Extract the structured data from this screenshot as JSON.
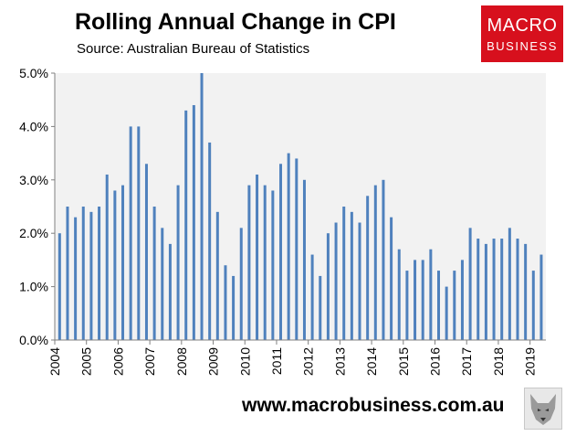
{
  "header": {
    "title": "Rolling Annual Change in CPI",
    "subtitle": "Source: Australian Bureau of Statistics"
  },
  "logo": {
    "line1": "MACRO",
    "line2": "BUSINESS"
  },
  "footer": {
    "url": "www.macrobusiness.com.au"
  },
  "colors": {
    "bar": "#4f81bd",
    "plot_background": "#f2f2f2",
    "logo": "#d7101d"
  },
  "chart_data": {
    "type": "bar",
    "title": "Rolling Annual Change in CPI",
    "subtitle": "Source: Australian Bureau of Statistics",
    "xlabel": "",
    "ylabel": "",
    "ylim": [
      0,
      5.0
    ],
    "yticks": [
      "0.0%",
      "1.0%",
      "2.0%",
      "3.0%",
      "4.0%",
      "5.0%"
    ],
    "xticks": [
      "2004",
      "2005",
      "2006",
      "2007",
      "2008",
      "2009",
      "2010",
      "2011",
      "2012",
      "2013",
      "2014",
      "2015",
      "2016",
      "2017",
      "2018",
      "2019"
    ],
    "grid": false,
    "legend": "none",
    "categories": [
      "2004 Q1",
      "2004 Q2",
      "2004 Q3",
      "2004 Q4",
      "2005 Q1",
      "2005 Q2",
      "2005 Q3",
      "2005 Q4",
      "2006 Q1",
      "2006 Q2",
      "2006 Q3",
      "2006 Q4",
      "2007 Q1",
      "2007 Q2",
      "2007 Q3",
      "2007 Q4",
      "2008 Q1",
      "2008 Q2",
      "2008 Q3",
      "2008 Q4",
      "2009 Q1",
      "2009 Q2",
      "2009 Q3",
      "2009 Q4",
      "2010 Q1",
      "2010 Q2",
      "2010 Q3",
      "2010 Q4",
      "2011 Q1",
      "2011 Q2",
      "2011 Q3",
      "2011 Q4",
      "2012 Q1",
      "2012 Q2",
      "2012 Q3",
      "2012 Q4",
      "2013 Q1",
      "2013 Q2",
      "2013 Q3",
      "2013 Q4",
      "2014 Q1",
      "2014 Q2",
      "2014 Q3",
      "2014 Q4",
      "2015 Q1",
      "2015 Q2",
      "2015 Q3",
      "2015 Q4",
      "2016 Q1",
      "2016 Q2",
      "2016 Q3",
      "2016 Q4",
      "2017 Q1",
      "2017 Q2",
      "2017 Q3",
      "2017 Q4",
      "2018 Q1",
      "2018 Q2",
      "2018 Q3",
      "2018 Q4",
      "2019 Q1",
      "2019 Q2"
    ],
    "values": [
      2.0,
      2.5,
      2.3,
      2.5,
      2.4,
      2.5,
      3.1,
      2.8,
      2.9,
      4.0,
      4.0,
      3.3,
      2.5,
      2.1,
      1.8,
      2.9,
      4.3,
      4.4,
      5.0,
      3.7,
      2.4,
      1.4,
      1.2,
      2.1,
      2.9,
      3.1,
      2.9,
      2.8,
      3.3,
      3.5,
      3.4,
      3.0,
      1.6,
      1.2,
      2.0,
      2.2,
      2.5,
      2.4,
      2.2,
      2.7,
      2.9,
      3.0,
      2.3,
      1.7,
      1.3,
      1.5,
      1.5,
      1.7,
      1.3,
      1.0,
      1.3,
      1.5,
      2.1,
      1.9,
      1.8,
      1.9,
      1.9,
      2.1,
      1.9,
      1.8,
      1.3,
      1.6
    ]
  }
}
